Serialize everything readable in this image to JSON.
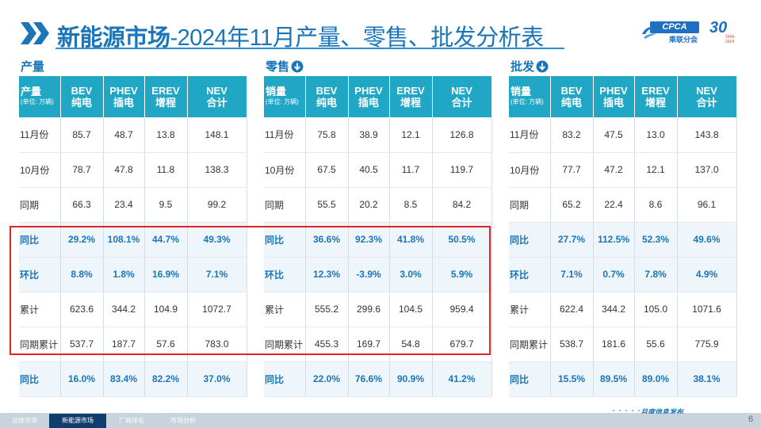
{
  "header": {
    "title_strong": "新能源市场",
    "title_rest": "-2024年11月产量、零售、批发分析表",
    "logo_text": "CPCA",
    "logo_sub": "乘联分会",
    "anniv_number": "30",
    "anniv_years": "1994-2024"
  },
  "colors": {
    "accent": "#1a76b9",
    "header_fill": "#21a7c6",
    "highlight": "#e02424",
    "footer_active": "#0f3d6e"
  },
  "sections": [
    {
      "label": "产量",
      "has_arrow": false,
      "corner_main": "产量",
      "corner_unit": "(单位: 万辆)",
      "columns": [
        [
          "BEV",
          "纯电"
        ],
        [
          "PHEV",
          "插电"
        ],
        [
          "EREV",
          "增程"
        ],
        [
          "NEV",
          "合计"
        ]
      ],
      "rows": [
        {
          "label": "11月份",
          "values": [
            "85.7",
            "48.7",
            "13.8",
            "148.1"
          ],
          "pct": false
        },
        {
          "label": "10月份",
          "values": [
            "78.7",
            "47.8",
            "11.8",
            "138.3"
          ],
          "pct": false
        },
        {
          "label": "同期",
          "values": [
            "66.3",
            "23.4",
            "9.5",
            "99.2"
          ],
          "pct": false
        },
        {
          "label": "同比",
          "values": [
            "29.2%",
            "108.1%",
            "44.7%",
            "49.3%"
          ],
          "pct": true
        },
        {
          "label": "环比",
          "values": [
            "8.8%",
            "1.8%",
            "16.9%",
            "7.1%"
          ],
          "pct": true
        },
        {
          "label": "累计",
          "values": [
            "623.6",
            "344.2",
            "104.9",
            "1072.7"
          ],
          "pct": false
        },
        {
          "label": "同期累计",
          "values": [
            "537.7",
            "187.7",
            "57.6",
            "783.0"
          ],
          "pct": false
        },
        {
          "label": "同比",
          "values": [
            "16.0%",
            "83.4%",
            "82.2%",
            "37.0%"
          ],
          "pct": true
        }
      ]
    },
    {
      "label": "零售",
      "has_arrow": true,
      "corner_main": "销量",
      "corner_unit": "(单位: 万辆)",
      "columns": [
        [
          "BEV",
          "纯电"
        ],
        [
          "PHEV",
          "插电"
        ],
        [
          "EREV",
          "增程"
        ],
        [
          "NEV",
          "合计"
        ]
      ],
      "rows": [
        {
          "label": "11月份",
          "values": [
            "75.8",
            "38.9",
            "12.1",
            "126.8"
          ],
          "pct": false
        },
        {
          "label": "10月份",
          "values": [
            "67.5",
            "40.5",
            "11.7",
            "119.7"
          ],
          "pct": false
        },
        {
          "label": "同期",
          "values": [
            "55.5",
            "20.2",
            "8.5",
            "84.2"
          ],
          "pct": false
        },
        {
          "label": "同比",
          "values": [
            "36.6%",
            "92.3%",
            "41.8%",
            "50.5%"
          ],
          "pct": true
        },
        {
          "label": "环比",
          "values": [
            "12.3%",
            "-3.9%",
            "3.0%",
            "5.9%"
          ],
          "pct": true
        },
        {
          "label": "累计",
          "values": [
            "555.2",
            "299.6",
            "104.5",
            "959.4"
          ],
          "pct": false
        },
        {
          "label": "同期累计",
          "values": [
            "455.3",
            "169.7",
            "54.8",
            "679.7"
          ],
          "pct": false
        },
        {
          "label": "同比",
          "values": [
            "22.0%",
            "76.6%",
            "90.9%",
            "41.2%"
          ],
          "pct": true
        }
      ]
    },
    {
      "label": "批发",
      "has_arrow": true,
      "corner_main": "销量",
      "corner_unit": "(单位: 万辆)",
      "columns": [
        [
          "BEV",
          "纯电"
        ],
        [
          "PHEV",
          "插电"
        ],
        [
          "EREV",
          "增程"
        ],
        [
          "NEV",
          "合计"
        ]
      ],
      "rows": [
        {
          "label": "11月份",
          "values": [
            "83.2",
            "47.5",
            "13.0",
            "143.8"
          ],
          "pct": false
        },
        {
          "label": "10月份",
          "values": [
            "77.7",
            "47.2",
            "12.1",
            "137.0"
          ],
          "pct": false
        },
        {
          "label": "同期",
          "values": [
            "65.2",
            "22.4",
            "8.6",
            "96.1"
          ],
          "pct": false
        },
        {
          "label": "同比",
          "values": [
            "27.7%",
            "112.5%",
            "52.3%",
            "49.6%"
          ],
          "pct": true
        },
        {
          "label": "环比",
          "values": [
            "7.1%",
            "0.7%",
            "7.8%",
            "4.9%"
          ],
          "pct": true
        },
        {
          "label": "累计",
          "values": [
            "622.4",
            "344.2",
            "105.0",
            "1071.6"
          ],
          "pct": false
        },
        {
          "label": "同期累计",
          "values": [
            "538.7",
            "181.6",
            "55.6",
            "775.9"
          ],
          "pct": false
        },
        {
          "label": "同比",
          "values": [
            "15.5%",
            "89.5%",
            "89.0%",
            "38.1%"
          ],
          "pct": true
        }
      ]
    }
  ],
  "footer": {
    "tabs": [
      {
        "label": "总体市场",
        "active": false
      },
      {
        "label": "新能源市场",
        "active": true
      },
      {
        "label": "厂商排名",
        "active": false
      },
      {
        "label": "市场分析",
        "active": false
      }
    ],
    "monthly_release": "月度信息发布",
    "page_number": "6"
  }
}
